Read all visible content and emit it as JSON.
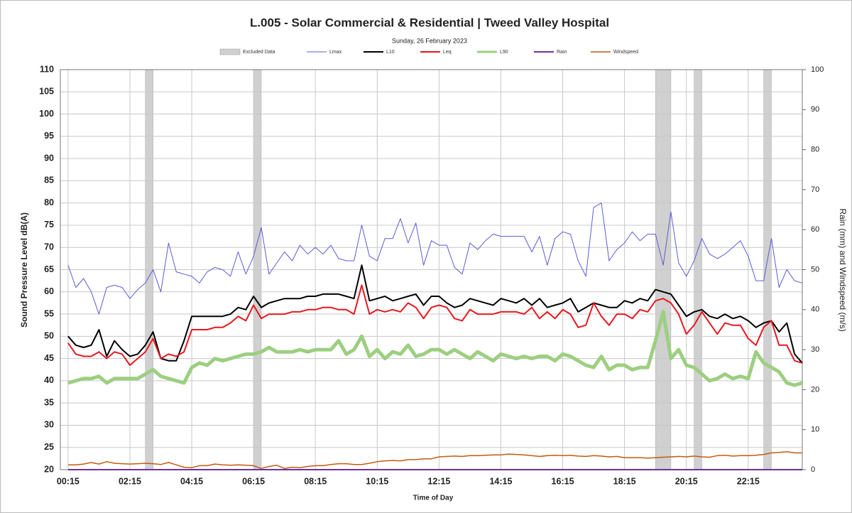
{
  "chart_data": {
    "type": "line",
    "title": "L.005 - Solar Commercial & Residential  |  Tweed Valley Hospital",
    "subtitle": "Sunday, 26 February 2023",
    "xlabel": "Time of Day",
    "ylabel": "Sound Pressure Level dB(A)",
    "y2label": "Rain (mm) and Windspeed (m/s)",
    "excluded_name": "Excluded Data",
    "excluded_color": "#d0d0d0",
    "excluded_ranges": [
      [
        2.75,
        3
      ],
      [
        6.25,
        6.5
      ],
      [
        19.25,
        19.75
      ],
      [
        20.5,
        20.75
      ],
      [
        22.75,
        23
      ]
    ],
    "xlim": [
      0,
      24
    ],
    "xticks": [
      {
        "value": 0.25,
        "label": "00:15"
      },
      {
        "value": 2.25,
        "label": "02:15"
      },
      {
        "value": 4.25,
        "label": "04:15"
      },
      {
        "value": 6.25,
        "label": "06:15"
      },
      {
        "value": 8.25,
        "label": "08:15"
      },
      {
        "value": 10.25,
        "label": "10:15"
      },
      {
        "value": 12.25,
        "label": "12:15"
      },
      {
        "value": 14.25,
        "label": "14:15"
      },
      {
        "value": 16.25,
        "label": "16:15"
      },
      {
        "value": 18.25,
        "label": "18:15"
      },
      {
        "value": 20.25,
        "label": "20:15"
      },
      {
        "value": 22.25,
        "label": "22:15"
      }
    ],
    "ylim": [
      20,
      110
    ],
    "yticks": [
      20,
      25,
      30,
      35,
      40,
      45,
      50,
      55,
      60,
      65,
      70,
      75,
      80,
      85,
      90,
      95,
      100,
      105,
      110
    ],
    "y2lim": [
      0,
      100
    ],
    "y2ticks": [
      0,
      10,
      20,
      30,
      40,
      50,
      60,
      70,
      80,
      90,
      100
    ],
    "grid": true,
    "x": [
      0.25,
      0.5,
      0.75,
      1,
      1.25,
      1.5,
      1.75,
      2,
      2.25,
      2.5,
      2.75,
      3,
      3.25,
      3.5,
      3.75,
      4,
      4.25,
      4.5,
      4.75,
      5,
      5.25,
      5.5,
      5.75,
      6,
      6.25,
      6.5,
      6.75,
      7,
      7.25,
      7.5,
      7.75,
      8,
      8.25,
      8.5,
      8.75,
      9,
      9.25,
      9.5,
      9.75,
      10,
      10.25,
      10.5,
      10.75,
      11,
      11.25,
      11.5,
      11.75,
      12,
      12.25,
      12.5,
      12.75,
      13,
      13.25,
      13.5,
      13.75,
      14,
      14.25,
      14.5,
      14.75,
      15,
      15.25,
      15.5,
      15.75,
      16,
      16.25,
      16.5,
      16.75,
      17,
      17.25,
      17.5,
      17.75,
      18,
      18.25,
      18.5,
      18.75,
      19,
      19.25,
      19.5,
      19.75,
      20,
      20.25,
      20.5,
      20.75,
      21,
      21.25,
      21.5,
      21.75,
      22,
      22.25,
      22.5,
      22.75,
      23,
      23.25,
      23.5,
      23.75,
      24
    ],
    "series": [
      {
        "name": "Lmax",
        "color": "#5b5bd6",
        "line_width": 1,
        "values": [
          66,
          61,
          63,
          60,
          55,
          61,
          61.5,
          61,
          58.5,
          60.5,
          62,
          65,
          60,
          71,
          64.5,
          64,
          63.5,
          62,
          64.5,
          65.5,
          65,
          63.5,
          69,
          64,
          68,
          74.5,
          64,
          66.5,
          69,
          67,
          70.5,
          68.5,
          70,
          68.5,
          70.5,
          67.5,
          67,
          67,
          75,
          68,
          67,
          72,
          72,
          76.5,
          71,
          75.5,
          66,
          71.5,
          70.5,
          70.5,
          65.5,
          64,
          71,
          69.5,
          71.5,
          73,
          72.5,
          72.5,
          72.5,
          72.5,
          69,
          72.5,
          66,
          72,
          73.5,
          73,
          67,
          63.5,
          79,
          80,
          67,
          69.5,
          71,
          73.5,
          71.5,
          73,
          73,
          66,
          78,
          66.5,
          63.5,
          67,
          72,
          68.5,
          67.5,
          68.5,
          70,
          71.5,
          68,
          62.5,
          62.5,
          72,
          61,
          65,
          62.5,
          62
        ]
      },
      {
        "name": "L10",
        "color": "#000000",
        "line_width": 2,
        "values": [
          50,
          48,
          47.5,
          48,
          51.5,
          45.5,
          49,
          47,
          45.5,
          46,
          48,
          51,
          45,
          44.5,
          44.5,
          49,
          54.5,
          54.5,
          54.5,
          54.5,
          54.5,
          55,
          56.5,
          56,
          59,
          56.5,
          57.5,
          58,
          58.5,
          58.5,
          58.5,
          59,
          59,
          59.5,
          59.5,
          59.5,
          59,
          58.5,
          66,
          58,
          58.5,
          59,
          58,
          58.5,
          59,
          59.5,
          57,
          59,
          59,
          57.5,
          56.5,
          57,
          58.5,
          58,
          57.5,
          57,
          58.5,
          58,
          57.5,
          58.5,
          57,
          58.5,
          56.5,
          57,
          57.5,
          58.5,
          55.5,
          56.5,
          57.5,
          57,
          56.5,
          56.5,
          58,
          57.5,
          58.5,
          58,
          60.5,
          60,
          59.5,
          57,
          54.5,
          55.5,
          56,
          54.5,
          54,
          55,
          54,
          54.5,
          53.5,
          52,
          53,
          53.5,
          51,
          53,
          46,
          44
        ]
      },
      {
        "name": "Leq",
        "color": "#e8171f",
        "line_width": 2,
        "values": [
          48.5,
          46,
          45.5,
          45.5,
          46.5,
          45,
          46.5,
          46,
          43.5,
          45,
          46.5,
          49.5,
          45,
          46,
          45.5,
          46.5,
          51.5,
          51.5,
          51.5,
          52,
          52,
          53,
          54.5,
          53.5,
          57,
          54,
          55,
          55,
          55,
          55.5,
          55.5,
          56,
          56,
          56.5,
          56.5,
          56,
          56,
          55,
          61.5,
          55,
          56,
          55.5,
          56,
          55.5,
          57.5,
          56.5,
          54,
          56.5,
          57,
          56.5,
          54,
          53.5,
          56,
          55,
          55,
          55,
          55.5,
          55.5,
          55.5,
          55,
          56.5,
          54,
          55.5,
          54,
          56,
          55,
          52,
          52.5,
          57.5,
          54.5,
          52.5,
          55,
          55,
          54,
          56,
          55.5,
          58,
          58.5,
          57.5,
          55,
          50.5,
          52.5,
          55.5,
          53,
          50.5,
          53,
          52.5,
          52.5,
          49.5,
          48,
          52,
          53.5,
          48,
          48,
          44.5,
          44
        ]
      },
      {
        "name": "L90",
        "color": "#9ccf80",
        "line_width": 5,
        "values": [
          39.5,
          40,
          40.5,
          40.5,
          41,
          39.5,
          40.5,
          40.5,
          40.5,
          40.5,
          41.5,
          42.5,
          41,
          40.5,
          40,
          39.5,
          43,
          44,
          43.5,
          45,
          44.5,
          45,
          45.5,
          46,
          46,
          46.5,
          47.5,
          46.5,
          46.5,
          46.5,
          47,
          46.5,
          47,
          47,
          47,
          49,
          46,
          47,
          50,
          45.5,
          47,
          45,
          46.5,
          46,
          48,
          45.5,
          46,
          47,
          47,
          46,
          47,
          46,
          45,
          46.5,
          45.5,
          44.5,
          46,
          45.5,
          45,
          45.5,
          45,
          45.5,
          45.5,
          44.5,
          46,
          45.5,
          44.5,
          43.5,
          43,
          45.5,
          42.5,
          43.5,
          43.5,
          42.5,
          43,
          43,
          49,
          55.5,
          45,
          47,
          43.5,
          43,
          41.5,
          40,
          40.5,
          41.5,
          40.5,
          41,
          40.5,
          46.5,
          44,
          43,
          42,
          39.5,
          39,
          39.5
        ]
      },
      {
        "name": "Rain",
        "color": "#7030a0",
        "line_width": 2,
        "axis": "y2",
        "values": [
          0,
          0,
          0,
          0,
          0,
          0,
          0,
          0,
          0,
          0,
          0,
          0,
          0,
          0,
          0,
          0,
          0,
          0,
          0,
          0,
          0,
          0,
          0,
          0,
          0,
          0,
          0,
          0,
          0,
          0,
          0,
          0,
          0,
          0,
          0,
          0,
          0,
          0,
          0,
          0,
          0,
          0,
          0,
          0,
          0,
          0,
          0,
          0,
          0,
          0,
          0,
          0,
          0,
          0,
          0,
          0,
          0,
          0,
          0,
          0,
          0,
          0,
          0,
          0,
          0,
          0,
          0,
          0,
          0,
          0,
          0,
          0,
          0,
          0,
          0,
          0,
          0,
          0,
          0,
          0,
          0,
          0,
          0,
          0,
          0,
          0,
          0,
          0,
          0,
          0,
          0,
          0,
          0,
          0,
          0,
          0
        ]
      },
      {
        "name": "Windspeed",
        "color": "#c55a11",
        "line_width": 1.5,
        "axis": "y2",
        "values": [
          1.2,
          1.2,
          1.4,
          1.8,
          1.4,
          2,
          1.6,
          1.5,
          1.4,
          1.5,
          1.6,
          1.5,
          1.3,
          1.8,
          1.2,
          0.6,
          0.5,
          1,
          1,
          1.4,
          1.2,
          1.1,
          1.2,
          1.1,
          1,
          0.3,
          0.8,
          1.1,
          0.3,
          0.6,
          0.5,
          0.8,
          1,
          1,
          1.3,
          1.5,
          1.5,
          1.3,
          1.3,
          1.6,
          2,
          2.2,
          2.3,
          2.2,
          2.5,
          2.5,
          2.7,
          2.7,
          3.2,
          3.3,
          3.4,
          3.3,
          3.5,
          3.5,
          3.6,
          3.7,
          3.7,
          3.9,
          3.8,
          3.7,
          3.5,
          3.3,
          3.5,
          3.6,
          3.5,
          3.6,
          3.4,
          3.3,
          3.5,
          3.4,
          3.2,
          3.3,
          3,
          3,
          3,
          2.9,
          3,
          3.1,
          3.2,
          3.3,
          3.2,
          3.4,
          3.2,
          3.1,
          3.5,
          3.6,
          3.4,
          3.5,
          3.5,
          3.6,
          3.8,
          4.2,
          4.3,
          4.5,
          4.2,
          4.2
        ]
      }
    ]
  }
}
